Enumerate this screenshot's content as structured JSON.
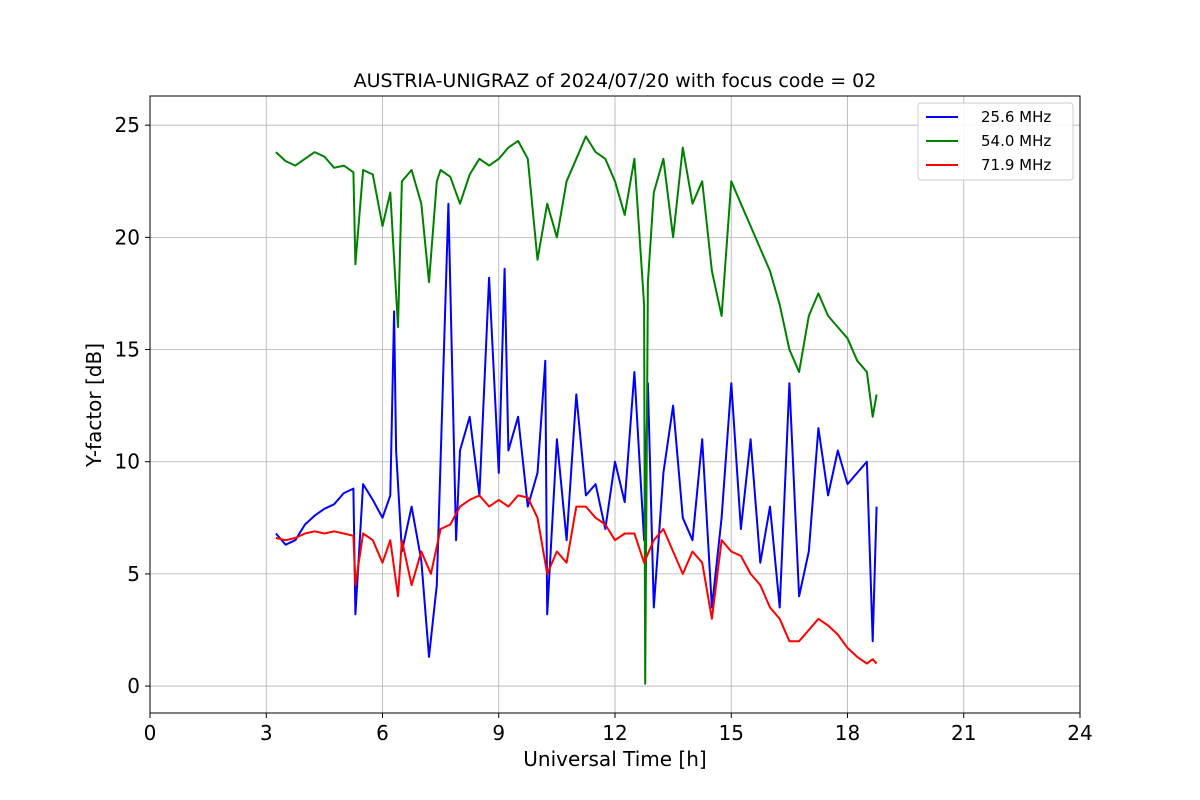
{
  "chart_data": {
    "type": "line",
    "title": "AUSTRIA-UNIGRAZ of 2024/07/20 with focus code = 02",
    "xlabel": "Universal Time [h]",
    "ylabel": "Y-factor [dB]",
    "xlim": [
      0,
      24
    ],
    "ylim": [
      -1.2,
      26.3
    ],
    "xticks": [
      0,
      3,
      6,
      9,
      12,
      15,
      18,
      21,
      24
    ],
    "yticks": [
      0,
      5,
      10,
      15,
      20,
      25
    ],
    "xtick_labels": [
      "0",
      "3",
      "6",
      "9",
      "12",
      "15",
      "18",
      "21",
      "24"
    ],
    "ytick_labels": [
      "0",
      "5",
      "10",
      "15",
      "20",
      "25"
    ],
    "grid": true,
    "legend_position": "top-right",
    "series": [
      {
        "name": "25.6 MHz",
        "color": "#0000ff",
        "x": [
          3.25,
          3.5,
          3.75,
          4.0,
          4.25,
          4.5,
          4.75,
          5.0,
          5.25,
          5.3,
          5.5,
          5.75,
          6.0,
          6.2,
          6.3,
          6.35,
          6.5,
          6.75,
          7.0,
          7.2,
          7.4,
          7.55,
          7.7,
          7.9,
          8.0,
          8.25,
          8.5,
          8.75,
          9.0,
          9.15,
          9.25,
          9.5,
          9.75,
          10.0,
          10.2,
          10.25,
          10.5,
          10.75,
          11.0,
          11.25,
          11.5,
          11.75,
          12.0,
          12.25,
          12.5,
          12.75,
          12.85,
          13.0,
          13.25,
          13.5,
          13.75,
          14.0,
          14.25,
          14.5,
          14.75,
          15.0,
          15.25,
          15.5,
          15.75,
          16.0,
          16.25,
          16.5,
          16.75,
          17.0,
          17.25,
          17.5,
          17.75,
          18.0,
          18.25,
          18.5,
          18.65,
          18.75
        ],
        "y": [
          6.8,
          6.3,
          6.5,
          7.2,
          7.6,
          7.9,
          8.1,
          8.6,
          8.8,
          3.2,
          9.0,
          8.3,
          7.5,
          8.5,
          16.7,
          10.5,
          6.0,
          8.0,
          5.6,
          1.3,
          4.5,
          13.0,
          21.5,
          6.5,
          10.5,
          12.0,
          8.5,
          18.2,
          9.5,
          18.6,
          10.5,
          12.0,
          8.0,
          9.5,
          14.5,
          3.2,
          11.0,
          6.5,
          13.0,
          8.5,
          9.0,
          7.0,
          10.0,
          8.2,
          14.0,
          6.5,
          13.5,
          3.5,
          9.5,
          12.5,
          7.5,
          6.5,
          11.0,
          3.5,
          7.5,
          13.5,
          7.0,
          11.0,
          5.5,
          8.0,
          3.5,
          13.5,
          4.0,
          6.0,
          11.5,
          8.5,
          10.5,
          9.0,
          9.5,
          10.0,
          2.0,
          8.0
        ]
      },
      {
        "name": "54.0 MHz",
        "color": "#008000",
        "x": [
          3.25,
          3.5,
          3.75,
          4.0,
          4.25,
          4.5,
          4.75,
          5.0,
          5.25,
          5.3,
          5.5,
          5.75,
          6.0,
          6.2,
          6.4,
          6.5,
          6.75,
          7.0,
          7.2,
          7.4,
          7.5,
          7.75,
          8.0,
          8.25,
          8.5,
          8.75,
          9.0,
          9.25,
          9.5,
          9.75,
          10.0,
          10.25,
          10.5,
          10.75,
          11.0,
          11.25,
          11.5,
          11.75,
          12.0,
          12.25,
          12.5,
          12.75,
          12.78,
          12.85,
          13.0,
          13.25,
          13.5,
          13.75,
          14.0,
          14.25,
          14.5,
          14.75,
          15.0,
          15.25,
          15.5,
          15.75,
          16.0,
          16.25,
          16.5,
          16.75,
          17.0,
          17.25,
          17.5,
          17.75,
          18.0,
          18.25,
          18.5,
          18.65,
          18.75
        ],
        "y": [
          23.8,
          23.4,
          23.2,
          23.5,
          23.8,
          23.6,
          23.1,
          23.2,
          22.9,
          18.8,
          23.0,
          22.8,
          20.5,
          22.0,
          16.0,
          22.5,
          23.0,
          21.5,
          18.0,
          22.5,
          23.0,
          22.7,
          21.5,
          22.8,
          23.5,
          23.2,
          23.5,
          24.0,
          24.3,
          23.5,
          19.0,
          21.5,
          20.0,
          22.5,
          23.5,
          24.5,
          23.8,
          23.5,
          22.5,
          21.0,
          23.5,
          17.0,
          0.1,
          18.0,
          22.0,
          23.5,
          20.0,
          24.0,
          21.5,
          22.5,
          18.5,
          16.5,
          22.5,
          21.5,
          20.5,
          19.5,
          18.5,
          17.0,
          15.0,
          14.0,
          16.5,
          17.5,
          16.5,
          16.0,
          15.5,
          14.5,
          14.0,
          12.0,
          13.0
        ]
      },
      {
        "name": "71.9 MHz",
        "color": "#ff0000",
        "x": [
          3.25,
          3.5,
          3.75,
          4.0,
          4.25,
          4.5,
          4.75,
          5.0,
          5.25,
          5.3,
          5.5,
          5.75,
          6.0,
          6.2,
          6.4,
          6.5,
          6.75,
          7.0,
          7.25,
          7.5,
          7.75,
          8.0,
          8.25,
          8.5,
          8.75,
          9.0,
          9.25,
          9.5,
          9.75,
          10.0,
          10.25,
          10.5,
          10.75,
          11.0,
          11.25,
          11.5,
          11.75,
          12.0,
          12.25,
          12.5,
          12.75,
          13.0,
          13.25,
          13.5,
          13.75,
          14.0,
          14.25,
          14.5,
          14.75,
          15.0,
          15.25,
          15.5,
          15.75,
          16.0,
          16.25,
          16.5,
          16.75,
          17.0,
          17.25,
          17.5,
          17.75,
          18.0,
          18.25,
          18.5,
          18.65,
          18.75
        ],
        "y": [
          6.6,
          6.5,
          6.6,
          6.8,
          6.9,
          6.8,
          6.9,
          6.8,
          6.7,
          4.5,
          6.8,
          6.5,
          5.5,
          6.5,
          4.0,
          6.5,
          4.5,
          6.0,
          5.0,
          7.0,
          7.2,
          8.0,
          8.3,
          8.5,
          8.0,
          8.3,
          8.0,
          8.5,
          8.4,
          7.5,
          5.0,
          6.0,
          5.5,
          8.0,
          8.0,
          7.5,
          7.2,
          6.5,
          6.8,
          6.8,
          5.5,
          6.5,
          7.0,
          6.0,
          5.0,
          6.0,
          5.5,
          3.0,
          6.5,
          6.0,
          5.8,
          5.0,
          4.5,
          3.5,
          3.0,
          2.0,
          2.0,
          2.5,
          3.0,
          2.7,
          2.3,
          1.7,
          1.3,
          1.0,
          1.2,
          1.0
        ]
      }
    ]
  }
}
